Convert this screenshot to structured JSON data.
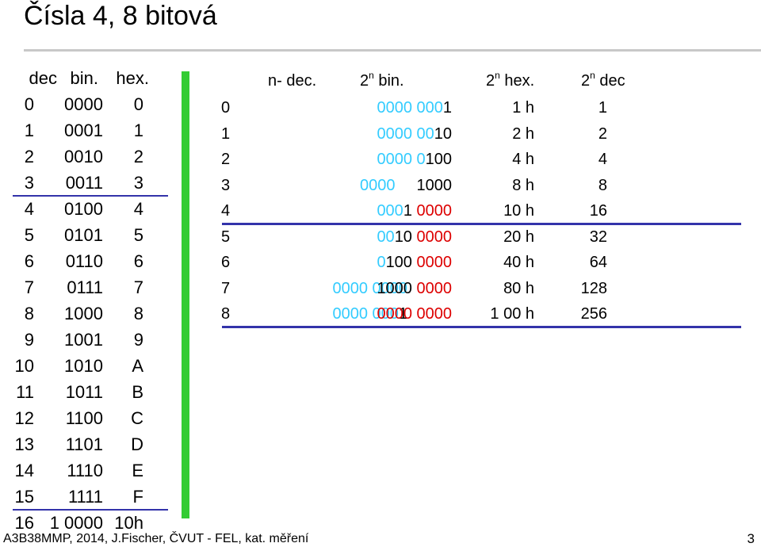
{
  "title": "Čísla  4, 8 bitová",
  "left_table": {
    "headers": [
      "dec",
      "bin.",
      "hex."
    ],
    "rows": [
      [
        "0",
        "0000",
        "0"
      ],
      [
        "1",
        "0001",
        "1"
      ],
      [
        "2",
        "0010",
        "2"
      ],
      [
        "3",
        "0011",
        "3"
      ],
      [
        "4",
        "0100",
        "4"
      ],
      [
        "5",
        "0101",
        "5"
      ],
      [
        "6",
        "0110",
        "6"
      ],
      [
        "7",
        "0111",
        "7"
      ],
      [
        "8",
        "1000",
        "8"
      ],
      [
        "9",
        "1001",
        "9"
      ],
      [
        "10",
        "1010",
        "A"
      ],
      [
        "11",
        "1011",
        "B"
      ],
      [
        "12",
        "1100",
        "C"
      ],
      [
        "13",
        "1101",
        "D"
      ],
      [
        "14",
        "1110",
        "E"
      ],
      [
        "15",
        "1111",
        "F"
      ],
      [
        "16",
        "1 0000",
        "10h"
      ]
    ]
  },
  "right_table": {
    "headers": {
      "n_dec": "n- dec.",
      "bin_base": "2",
      "bin_sup": "n",
      "bin_text": " bin.",
      "hex_base": "2",
      "hex_sup": "n",
      "hex_text": " hex.",
      "dec_base": "2",
      "dec_sup": "n",
      "dec_text": " dec"
    },
    "rows": [
      {
        "n": "0",
        "ext_c": "",
        "ext_k": "",
        "bin_c": "0000 000",
        "bin_k": "1",
        "bin_r": "",
        "hex": "1 h",
        "dec": "1"
      },
      {
        "n": "1",
        "ext_c": "",
        "ext_k": "",
        "bin_c": "0000 00",
        "bin_k": "10",
        "bin_r": "",
        "hex": "2 h",
        "dec": "2"
      },
      {
        "n": "2",
        "ext_c": "",
        "ext_k": "",
        "bin_c": "0000 0",
        "bin_k": "100",
        "bin_r": "",
        "hex": "4 h",
        "dec": "4"
      },
      {
        "n": "3",
        "ext_c": "0000",
        "ext_k": "",
        "bin_c": "",
        "bin_k": "1000",
        "bin_r": "",
        "hex": "8 h",
        "dec": "8",
        "split": true
      },
      {
        "n": "4",
        "ext_c": "",
        "ext_k": "",
        "bin_c": "000",
        "bin_k": "1 ",
        "bin_r": "0000",
        "hex": "10 h",
        "dec": "16"
      },
      {
        "n": "5",
        "ext_c": "",
        "ext_k": "",
        "bin_c": "00",
        "bin_k": "10 ",
        "bin_r": "0000",
        "hex": "20 h",
        "dec": "32"
      },
      {
        "n": "6",
        "ext_c": "",
        "ext_k": "",
        "bin_c": "0",
        "bin_k": "100 ",
        "bin_r": "0000",
        "hex": "40 h",
        "dec": "64"
      },
      {
        "n": "7",
        "ext_c": "0000 0000",
        "ext_k": "",
        "bin_c": "",
        "bin_k": "1000 ",
        "bin_r": "0000",
        "hex": "80 h",
        "dec": "128"
      },
      {
        "n": "8",
        "ext_c": "0000 000",
        "ext_k": "1",
        "bin_c": "",
        "bin_k": "",
        "bin_r": "0000 0000",
        "hex": "1 00 h",
        "dec": "256"
      }
    ]
  },
  "colors": {
    "cyan_digits": "#33ccff",
    "red_digits": "#dd0000",
    "rule": "#3333aa",
    "bar": "#33cc33"
  },
  "footer": "A3B38MMP, 2014, J.Fischer, ČVUT - FEL, kat. měření",
  "page_number": "3"
}
